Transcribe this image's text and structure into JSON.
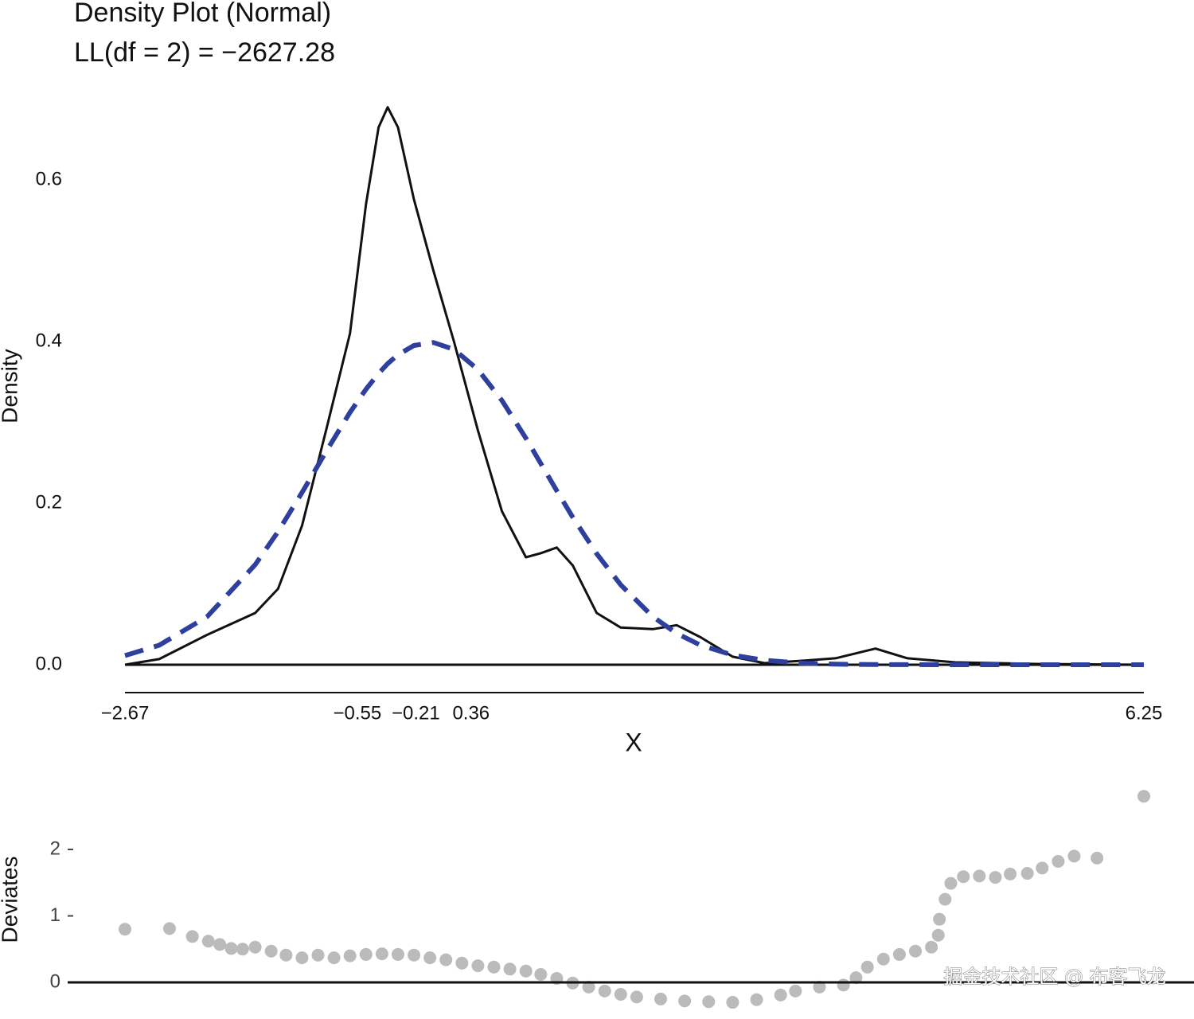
{
  "chart_data": [
    {
      "type": "line",
      "title": "Density Plot (Normal)",
      "subtitle": "LL(df = 2) = −2627.28",
      "x_label": "X",
      "y_label": "Density",
      "x": [
        -2.67,
        -2.37,
        -1.95,
        -1.53,
        -1.33,
        -1.12,
        -0.91,
        -0.7,
        -0.56,
        -0.45,
        -0.37,
        -0.28,
        -0.14,
        0.03,
        0.21,
        0.42,
        0.63,
        0.84,
        0.97,
        1.11,
        1.25,
        1.46,
        1.67,
        1.95,
        2.16,
        2.37,
        2.65,
        2.93,
        3.27,
        3.55,
        3.9,
        4.18,
        4.6,
        5.3,
        6.25
      ],
      "series": [
        {
          "color": "#111111",
          "linestyle": "solid",
          "values": [
            0,
            0.007,
            0.037,
            0.064,
            0.094,
            0.172,
            0.29,
            0.41,
            0.57,
            0.665,
            0.69,
            0.665,
            0.576,
            0.488,
            0.4,
            0.29,
            0.19,
            0.133,
            0.138,
            0.145,
            0.123,
            0.064,
            0.046,
            0.044,
            0.049,
            0.034,
            0.01,
            0.002,
            0.005,
            0.008,
            0.02,
            0.008,
            0.003,
            0.001,
            0
          ]
        },
        {
          "color": "#2e3f9e",
          "linestyle": "dashed",
          "values": [
            0.0113,
            0.0241,
            0.0596,
            0.1238,
            0.1647,
            0.2131,
            0.2637,
            0.3123,
            0.341,
            0.3605,
            0.3726,
            0.3836,
            0.3951,
            0.3988,
            0.3902,
            0.3653,
            0.3271,
            0.2803,
            0.2492,
            0.2155,
            0.1826,
            0.1374,
            0.0989,
            0.0596,
            0.0387,
            0.0241,
            0.0119,
            0.0055,
            0.0019,
            0.0007,
            0.0002,
            0.0001,
            0,
            0,
            0
          ]
        }
      ],
      "xlim": [
        -2.67,
        6.25
      ],
      "ylim": [
        0,
        0.7
      ],
      "xticks": [
        {
          "value": -2.67,
          "label": "−2.67"
        },
        {
          "value": -0.55,
          "label": "−0.55"
        },
        {
          "value": -0.21,
          "label": "−0.21"
        },
        0.36,
        6.25
      ],
      "yticks": [
        {
          "value": 0,
          "label": "0.0"
        },
        0.2,
        0.4,
        0.6
      ]
    },
    {
      "type": "scatter",
      "y_label": "Deviates",
      "color": "#bbbbbb",
      "x": [
        -2.67,
        -2.28,
        -2.08,
        -1.94,
        -1.84,
        -1.74,
        -1.64,
        -1.53,
        -1.39,
        -1.26,
        -1.12,
        -0.98,
        -0.84,
        -0.7,
        -0.56,
        -0.42,
        -0.28,
        -0.14,
        0.0,
        0.14,
        0.28,
        0.42,
        0.56,
        0.7,
        0.84,
        0.97,
        1.11,
        1.25,
        1.39,
        1.53,
        1.67,
        1.81,
        2.02,
        2.23,
        2.44,
        2.65,
        2.86,
        3.07,
        3.2,
        3.41,
        3.62,
        3.73,
        3.83,
        3.97,
        4.11,
        4.25,
        4.39,
        4.45,
        4.46,
        4.51,
        4.56,
        4.67,
        4.81,
        4.95,
        5.08,
        5.23,
        5.36,
        5.5,
        5.64,
        5.84,
        6.25
      ],
      "values": [
        0.8,
        0.81,
        0.69,
        0.62,
        0.57,
        0.51,
        0.5,
        0.53,
        0.47,
        0.41,
        0.37,
        0.41,
        0.37,
        0.4,
        0.42,
        0.43,
        0.42,
        0.41,
        0.37,
        0.34,
        0.29,
        0.25,
        0.23,
        0.2,
        0.17,
        0.12,
        0.06,
        -0.01,
        -0.07,
        -0.13,
        -0.18,
        -0.22,
        -0.25,
        -0.28,
        -0.29,
        -0.3,
        -0.26,
        -0.19,
        -0.13,
        -0.07,
        -0.04,
        0.07,
        0.23,
        0.35,
        0.42,
        0.47,
        0.53,
        0.71,
        0.95,
        1.25,
        1.49,
        1.59,
        1.6,
        1.58,
        1.63,
        1.64,
        1.72,
        1.82,
        1.9,
        1.87,
        2.8
      ],
      "xlim": [
        -2.67,
        6.25
      ],
      "ylim": [
        -0.4,
        2.9
      ],
      "yticks": [
        0,
        1,
        2
      ]
    }
  ],
  "watermark": "掘金技术社区 @ 布客飞龙"
}
